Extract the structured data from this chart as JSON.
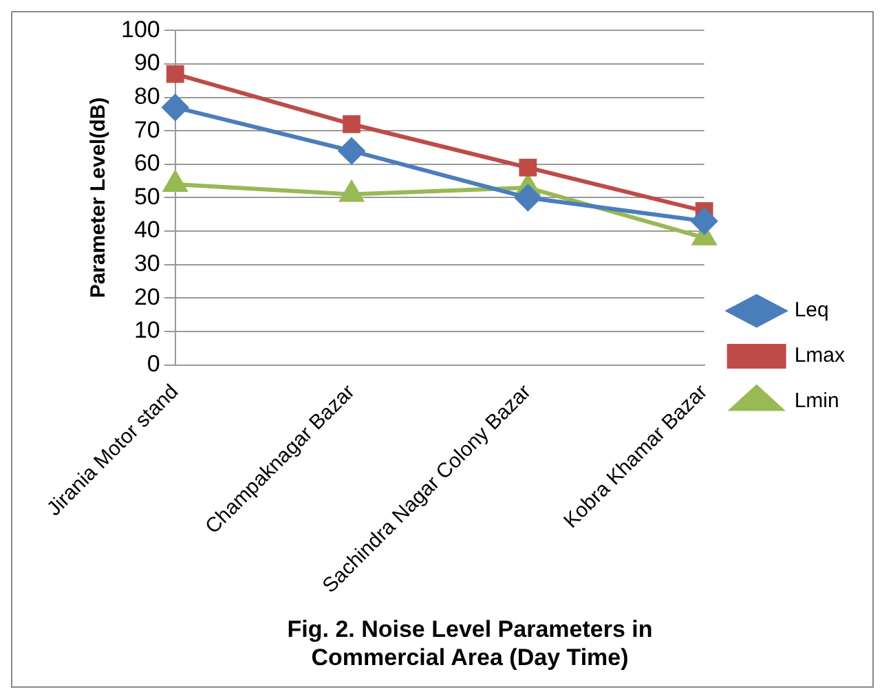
{
  "chart_data": {
    "type": "line",
    "title": "Fig. 2. Noise Level Parameters in Commercial Area (Day Time)",
    "ylabel": "Parameter Level(dB)",
    "categories": [
      "Jirania Motor stand",
      "Champaknagar Bazar",
      "Sachindra Nagar Colony Bazar",
      "Kobra Khamar Bazar"
    ],
    "series": [
      {
        "name": "Leq",
        "color": "#4a7ebb",
        "values": [
          77,
          64,
          50,
          43
        ],
        "marker": "diamond"
      },
      {
        "name": "Lmax",
        "color": "#be4b48",
        "values": [
          87,
          72,
          59,
          46
        ],
        "marker": "square"
      },
      {
        "name": "Lmin",
        "color": "#98b954",
        "values": [
          54,
          51,
          53,
          38
        ],
        "marker": "triangle"
      }
    ],
    "ylim": [
      0,
      100
    ],
    "yticks": [
      0,
      10,
      20,
      30,
      40,
      50,
      60,
      70,
      80,
      90,
      100
    ],
    "grid": "y",
    "legend": "right"
  }
}
